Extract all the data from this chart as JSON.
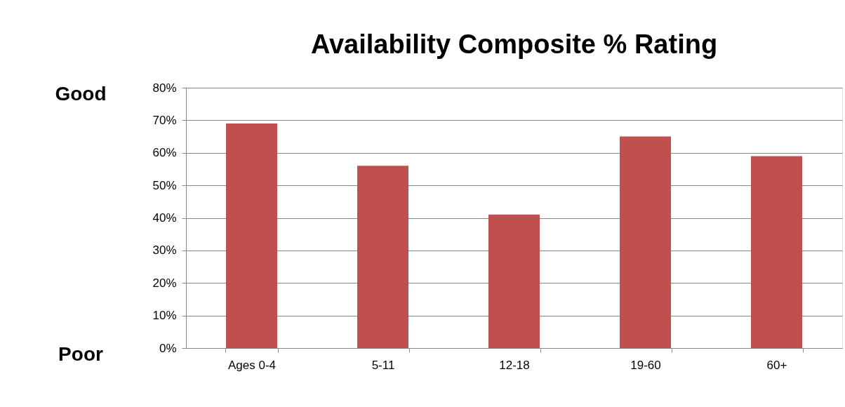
{
  "chart_data": {
    "type": "bar",
    "title": "Availability Composite % Rating",
    "categories": [
      "Ages 0-4",
      "5-11",
      "12-18",
      "19-60",
      "60+"
    ],
    "series": [
      {
        "color": "#c0504d",
        "values": [
          69,
          56,
          41,
          65,
          59
        ]
      }
    ],
    "ylim": [
      0,
      80
    ],
    "yticks": [
      {
        "value": 0,
        "label": "0%"
      },
      {
        "value": 10,
        "label": "10%"
      },
      {
        "value": 20,
        "label": "20%"
      },
      {
        "value": 30,
        "label": "30%"
      },
      {
        "value": 40,
        "label": "40%"
      },
      {
        "value": 50,
        "label": "50%"
      },
      {
        "value": 60,
        "label": "60%"
      },
      {
        "value": 70,
        "label": "70%"
      },
      {
        "value": 80,
        "label": "80%"
      }
    ],
    "grid": "y",
    "annotations": [
      "Good",
      "Poor"
    ]
  }
}
